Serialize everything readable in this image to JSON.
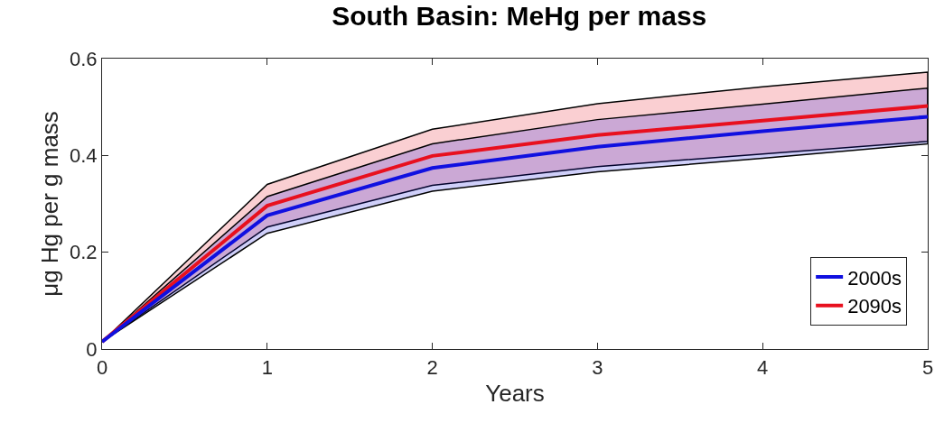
{
  "chart_data": {
    "type": "line",
    "title": "South Basin: MeHg per mass",
    "xlabel": "Years",
    "ylabel": "μg Hg per g mass",
    "x": [
      0,
      1,
      2,
      3,
      4,
      5
    ],
    "series": [
      {
        "name": "2090s",
        "color": "#e8101e",
        "values": [
          0.015,
          0.296,
          0.399,
          0.442,
          0.472,
          0.502
        ],
        "lower": [
          0.015,
          0.252,
          0.338,
          0.377,
          0.403,
          0.429
        ],
        "upper": [
          0.015,
          0.34,
          0.454,
          0.507,
          0.542,
          0.572
        ]
      },
      {
        "name": "2000s",
        "color": "#1010e0",
        "values": [
          0.015,
          0.276,
          0.374,
          0.418,
          0.45,
          0.48
        ],
        "lower": [
          0.015,
          0.239,
          0.326,
          0.366,
          0.394,
          0.424
        ],
        "upper": [
          0.015,
          0.315,
          0.424,
          0.474,
          0.506,
          0.539
        ]
      }
    ],
    "xlim": [
      0,
      5
    ],
    "xticks": [
      0,
      1,
      2,
      3,
      4,
      5
    ],
    "ylim": [
      0,
      0.6
    ],
    "yticks": [
      0,
      0.2,
      0.4,
      0.6
    ],
    "legend": "bottom right",
    "marker": "none",
    "line_style": "solid"
  }
}
